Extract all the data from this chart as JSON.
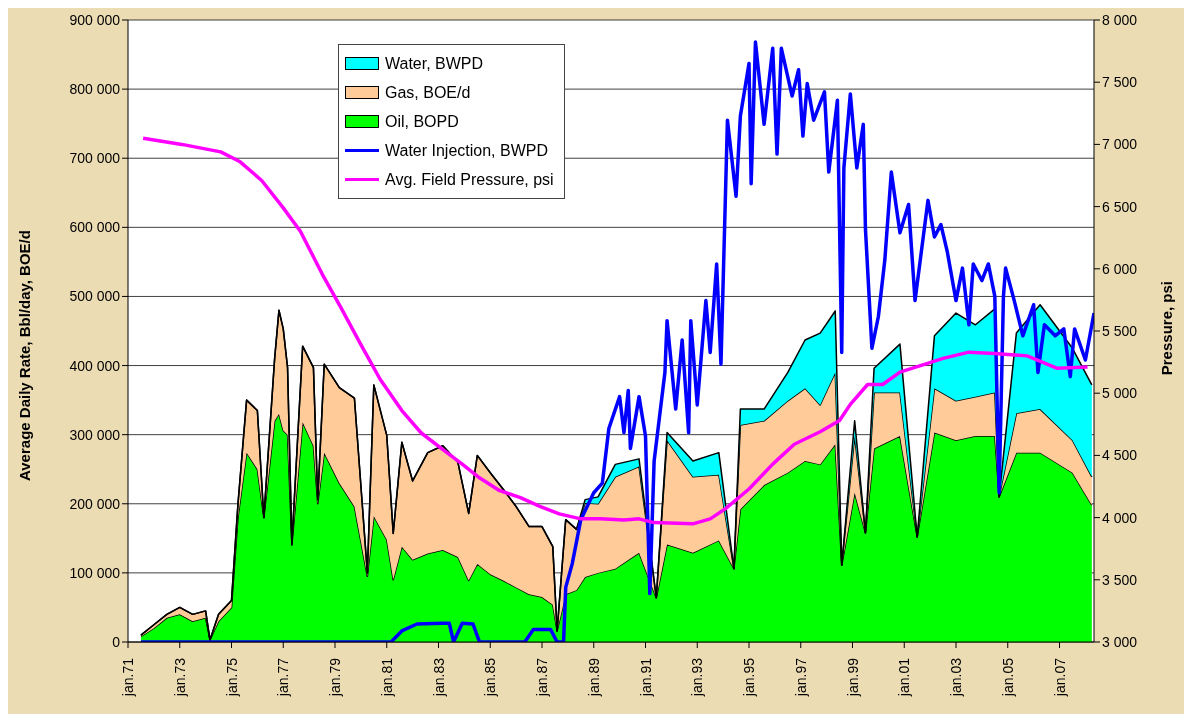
{
  "chart_data": {
    "type": "area",
    "stacked": true,
    "ylabel": "Average Daily Rate, Bbl/day, BOE/d",
    "y2label": "Pressure, psi",
    "x": [
      "1971-07",
      "1972-01",
      "1972-07",
      "1973-01",
      "1973-07",
      "1974-01",
      "1974-03",
      "1974-07",
      "1975-01",
      "1975-04",
      "1975-08",
      "1976-01",
      "1976-04",
      "1976-09",
      "1976-11",
      "1977-01",
      "1977-03",
      "1977-05",
      "1977-10",
      "1978-03",
      "1978-05",
      "1978-08",
      "1979-03",
      "1979-10",
      "1980-04",
      "1980-07",
      "1981-01",
      "1981-04",
      "1981-08",
      "1982-01",
      "1982-08",
      "1983-03",
      "1983-10",
      "1984-03",
      "1984-07",
      "1985-01",
      "1985-07",
      "1986-01",
      "1986-07",
      "1987-01",
      "1987-06",
      "1987-08",
      "1987-12",
      "1988-05",
      "1988-09",
      "1989-03",
      "1989-11",
      "1990-10",
      "1991-06",
      "1991-11",
      "1992-11",
      "1993-11",
      "1994-06",
      "1994-09",
      "1995-08",
      "1996-07",
      "1997-03",
      "1997-10",
      "1998-05",
      "1998-08",
      "1999-02",
      "1999-07",
      "1999-11",
      "2000-11",
      "2001-07",
      "2002-03",
      "2003-01",
      "2003-10",
      "2004-07",
      "2004-09",
      "2005-05",
      "2006-04",
      "2007-07",
      "2008-04"
    ],
    "series": [
      {
        "name": "Oil, BOPD",
        "color": "#00ff00",
        "values": [
          8000,
          20000,
          35000,
          40000,
          30000,
          35000,
          3000,
          30000,
          50000,
          180000,
          274000,
          250000,
          180000,
          320000,
          330000,
          306000,
          300000,
          140000,
          318000,
          284000,
          200000,
          274000,
          230000,
          196000,
          95000,
          182000,
          148000,
          90000,
          138000,
          119000,
          128000,
          133000,
          123000,
          89000,
          113000,
          98000,
          89000,
          79000,
          69000,
          65000,
          54000,
          16000,
          69000,
          75000,
          94000,
          100000,
          106000,
          129000,
          64000,
          141000,
          129000,
          147000,
          106000,
          192000,
          227000,
          245000,
          262000,
          257000,
          286000,
          111000,
          216000,
          158000,
          280000,
          298000,
          152000,
          303000,
          292000,
          298000,
          298000,
          210000,
          274000,
          274000,
          245000,
          198000
        ]
      },
      {
        "name": "Gas, BOE/d",
        "color": "#ffcc99",
        "values": [
          2000,
          5000,
          5000,
          10000,
          10000,
          10000,
          0,
          10000,
          10000,
          20000,
          76000,
          85000,
          0,
          90000,
          150000,
          147000,
          97000,
          2000,
          110000,
          113000,
          6000,
          128000,
          138000,
          157000,
          5000,
          190000,
          151000,
          67000,
          151000,
          114000,
          146000,
          151000,
          137000,
          97000,
          157000,
          147000,
          132000,
          117000,
          98000,
          102000,
          84000,
          0,
          108000,
          88000,
          107000,
          100000,
          133000,
          125000,
          0,
          151000,
          110000,
          95000,
          0,
          122000,
          93000,
          104000,
          105000,
          86000,
          104000,
          0,
          82000,
          0,
          81000,
          63000,
          0,
          64000,
          57000,
          57000,
          63000,
          0,
          57000,
          63000,
          47000,
          41000
        ]
      },
      {
        "name": "Water, BWPD",
        "color": "#00ffff",
        "values": [
          0,
          0,
          0,
          0,
          0,
          0,
          0,
          0,
          0,
          0,
          0,
          0,
          0,
          0,
          0,
          0,
          0,
          0,
          0,
          0,
          0,
          0,
          0,
          0,
          0,
          0,
          0,
          0,
          0,
          0,
          0,
          0,
          0,
          0,
          0,
          0,
          0,
          0,
          0,
          0,
          0,
          0,
          0,
          0,
          5000,
          10000,
          18000,
          11000,
          0,
          11000,
          23000,
          32000,
          0,
          23000,
          17000,
          41000,
          70000,
          104000,
          89000,
          0,
          22000,
          0,
          35000,
          70000,
          0,
          76000,
          127000,
          104000,
          121000,
          0,
          116000,
          151000,
          133000,
          133000
        ]
      },
      {
        "name": "Water Injection, BWPD",
        "type": "line",
        "color": "#0000ff",
        "x": [
          "1971-07",
          "1981-03",
          "1981-08",
          "1982-03",
          "1983-03",
          "1983-06",
          "1983-08",
          "1983-12",
          "1984-05",
          "1984-08",
          "1986-05",
          "1986-09",
          "1987-05",
          "1987-08",
          "1987-11",
          "1987-12",
          "1988-03",
          "1988-07",
          "1989-01",
          "1989-05",
          "1989-08",
          "1990-01",
          "1990-03",
          "1990-05",
          "1990-06",
          "1990-10",
          "1991-01",
          "1991-03",
          "1991-05",
          "1991-10",
          "1991-11",
          "1992-03",
          "1992-06",
          "1992-09",
          "1992-10",
          "1993-01",
          "1993-05",
          "1993-07",
          "1993-10",
          "1993-12",
          "1994-03",
          "1994-07",
          "1994-09",
          "1995-01",
          "1995-02",
          "1995-04",
          "1995-08",
          "1995-12",
          "1996-02",
          "1996-04",
          "1996-09",
          "1996-12",
          "1997-02",
          "1997-04",
          "1997-07",
          "1997-12",
          "1998-02",
          "1998-06",
          "1998-08",
          "1998-09",
          "1998-12",
          "1999-03",
          "1999-06",
          "1999-07",
          "1999-10",
          "2000-01",
          "2000-04",
          "2000-07",
          "2000-11",
          "2001-03",
          "2001-06",
          "2001-12",
          "2002-03",
          "2002-06",
          "2002-09",
          "2003-01",
          "2003-04",
          "2003-07",
          "2003-09",
          "2004-01",
          "2004-04",
          "2004-07",
          "2004-09",
          "2004-11",
          "2004-12",
          "2005-04",
          "2005-08",
          "2006-01",
          "2006-03",
          "2006-06",
          "2006-11",
          "2007-03",
          "2007-06",
          "2007-08",
          "2008-01",
          "2008-05"
        ],
        "values": [
          0,
          0,
          16000,
          26000,
          27000,
          27000,
          0,
          27000,
          26000,
          0,
          0,
          18000,
          18000,
          0,
          0,
          79000,
          113000,
          177000,
          216000,
          230000,
          309000,
          355000,
          303000,
          364000,
          280000,
          355000,
          298000,
          70000,
          262000,
          390000,
          465000,
          337000,
          437000,
          303000,
          465000,
          343000,
          494000,
          419000,
          547000,
          402000,
          755000,
          645000,
          761000,
          837000,
          663000,
          868000,
          749000,
          859000,
          706000,
          859000,
          790000,
          828000,
          732000,
          808000,
          755000,
          796000,
          680000,
          784000,
          419000,
          686000,
          793000,
          686000,
          749000,
          598000,
          425000,
          471000,
          553000,
          680000,
          592000,
          633000,
          494000,
          639000,
          586000,
          604000,
          564000,
          494000,
          541000,
          459000,
          547000,
          523000,
          547000,
          500000,
          216000,
          500000,
          541000,
          494000,
          443000,
          488000,
          390000,
          459000,
          443000,
          453000,
          384000,
          453000,
          408000,
          476000
        ]
      },
      {
        "name": "Avg. Field Pressure, psi",
        "type": "line",
        "axis": "y2",
        "color": "#ff00ff",
        "x": [
          "1971-08",
          "1973-02",
          "1974-08",
          "1975-05",
          "1976-03",
          "1977-01",
          "1977-09",
          "1978-07",
          "1979-04",
          "1980-01",
          "1980-10",
          "1981-08",
          "1982-05",
          "1983-02",
          "1983-12",
          "1984-08",
          "1985-05",
          "1986-03",
          "1986-12",
          "1987-09",
          "1988-07",
          "1989-04",
          "1990-03",
          "1990-10",
          "1991-05",
          "1992-11",
          "1993-07",
          "1994-02",
          "1995-01",
          "1995-12",
          "1996-10",
          "1997-10",
          "1998-07",
          "1998-12",
          "1999-08",
          "2000-03",
          "2000-11",
          "2001-10",
          "2002-07",
          "2003-07",
          "2004-07",
          "2005-10",
          "2006-12",
          "2008-02"
        ],
        "values": [
          7050,
          7000,
          6940,
          6860,
          6710,
          6490,
          6300,
          5960,
          5680,
          5390,
          5110,
          4860,
          4680,
          4560,
          4430,
          4320,
          4220,
          4160,
          4090,
          4030,
          3990,
          3990,
          3980,
          3990,
          3960,
          3950,
          3990,
          4070,
          4230,
          4430,
          4590,
          4690,
          4780,
          4910,
          5070,
          5070,
          5170,
          5230,
          5280,
          5330,
          5320,
          5300,
          5200,
          5210
        ]
      }
    ],
    "xlim": [
      "1971-01",
      "2008-05"
    ],
    "xticks": [
      {
        "value": "1971-01",
        "label": "jan.71"
      },
      {
        "value": "1973-01",
        "label": "jan.73"
      },
      {
        "value": "1975-01",
        "label": "jan.75"
      },
      {
        "value": "1977-01",
        "label": "jan.77"
      },
      {
        "value": "1979-01",
        "label": "jan.79"
      },
      {
        "value": "1981-01",
        "label": "jan.81"
      },
      {
        "value": "1983-01",
        "label": "jan.83"
      },
      {
        "value": "1985-01",
        "label": "jan.85"
      },
      {
        "value": "1987-01",
        "label": "jan.87"
      },
      {
        "value": "1989-01",
        "label": "jan.89"
      },
      {
        "value": "1991-01",
        "label": "jan.91"
      },
      {
        "value": "1993-01",
        "label": "jan.93"
      },
      {
        "value": "1995-01",
        "label": "jan.95"
      },
      {
        "value": "1997-01",
        "label": "jan.97"
      },
      {
        "value": "1999-01",
        "label": "jan.99"
      },
      {
        "value": "2001-01",
        "label": "jan.01"
      },
      {
        "value": "2003-01",
        "label": "jan.03"
      },
      {
        "value": "2005-01",
        "label": "jan.05"
      },
      {
        "value": "2007-01",
        "label": "jan.07"
      }
    ],
    "ylim": [
      0,
      900000
    ],
    "yticks": [
      0,
      {
        "value": 100000,
        "label": "100 000"
      },
      {
        "value": 200000,
        "label": "200 000"
      },
      {
        "value": 300000,
        "label": "300 000"
      },
      {
        "value": 400000,
        "label": "400 000"
      },
      {
        "value": 500000,
        "label": "500 000"
      },
      {
        "value": 600000,
        "label": "600 000"
      },
      {
        "value": 700000,
        "label": "700 000"
      },
      {
        "value": 800000,
        "label": "800 000"
      },
      {
        "value": 900000,
        "label": "900 000"
      }
    ],
    "y2lim": [
      3000,
      8000
    ],
    "y2ticks": [
      {
        "value": 3000,
        "label": "3 000"
      },
      {
        "value": 3500,
        "label": "3 500"
      },
      {
        "value": 4000,
        "label": "4 000"
      },
      {
        "value": 4500,
        "label": "4 500"
      },
      {
        "value": 5000,
        "label": "5 000"
      },
      {
        "value": 5500,
        "label": "5 500"
      },
      {
        "value": 6000,
        "label": "6 000"
      },
      {
        "value": 6500,
        "label": "6 500"
      },
      {
        "value": 7000,
        "label": "7 000"
      },
      {
        "value": 7500,
        "label": "7 500"
      },
      {
        "value": 8000,
        "label": "8 000"
      }
    ],
    "grid": "y",
    "legend": "top left",
    "marker": "none",
    "line_style": "solid"
  }
}
